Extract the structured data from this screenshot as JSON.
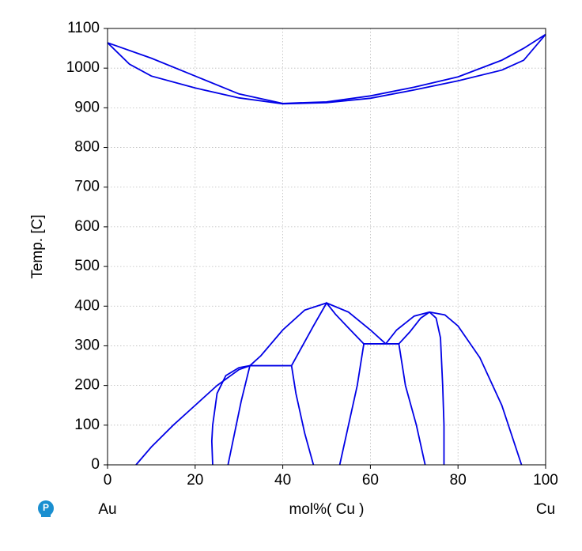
{
  "chart_data": {
    "type": "line",
    "y_label": "Temp.  [C]",
    "x_label": "mol%(  Cu  )",
    "left_label": "Au",
    "right_label": "Cu",
    "xlim": [
      0,
      100
    ],
    "ylim": [
      0,
      1100
    ],
    "xticks": [
      0,
      20,
      40,
      60,
      80,
      100
    ],
    "yticks": [
      0,
      100,
      200,
      300,
      400,
      500,
      600,
      700,
      800,
      900,
      1000,
      1100
    ],
    "grid": true,
    "series": [
      {
        "color": "#0000e6",
        "x": [
          0,
          10,
          20,
          30,
          40,
          50,
          60,
          70,
          80,
          90,
          95,
          100
        ],
        "values": [
          1064,
          1025,
          980,
          935,
          911,
          915,
          930,
          952,
          978,
          1020,
          1050,
          1085
        ]
      },
      {
        "color": "#0000e6",
        "x": [
          0,
          5,
          10,
          20,
          30,
          40,
          50,
          60,
          70,
          80,
          90,
          95,
          100
        ],
        "values": [
          1064,
          1010,
          980,
          950,
          925,
          910,
          913,
          924,
          945,
          968,
          995,
          1020,
          1085
        ]
      },
      {
        "color": "#0000e6",
        "x": [
          6.5,
          10,
          15,
          20,
          25,
          30,
          32.5,
          35,
          40,
          45,
          50,
          55,
          60,
          63.5
        ],
        "values": [
          0,
          45,
          100,
          150,
          200,
          240,
          250,
          275,
          340,
          390,
          408,
          385,
          340,
          305
        ]
      },
      {
        "color": "#0000e6",
        "x": [
          24,
          23.8,
          24,
          25,
          27,
          30,
          32.5
        ],
        "values": [
          0,
          60,
          100,
          180,
          225,
          245,
          250
        ]
      },
      {
        "color": "#0000e6",
        "x": [
          27.5,
          29,
          30.5,
          32.5,
          42
        ],
        "values": [
          0,
          80,
          160,
          250,
          250
        ]
      },
      {
        "color": "#0000e6",
        "x": [
          42,
          43,
          45,
          47
        ],
        "values": [
          250,
          180,
          80,
          0
        ]
      },
      {
        "color": "#0000e6",
        "x": [
          42,
          44,
          47,
          50,
          52,
          55,
          58.5,
          66.5
        ],
        "values": [
          250,
          290,
          350,
          408,
          380,
          345,
          305,
          305
        ]
      },
      {
        "color": "#0000e6",
        "x": [
          58.5,
          57,
          55,
          53
        ],
        "values": [
          305,
          200,
          100,
          0
        ]
      },
      {
        "color": "#0000e6",
        "x": [
          66.5,
          68,
          70.5,
          72.5
        ],
        "values": [
          305,
          200,
          100,
          0
        ]
      },
      {
        "color": "#0000e6",
        "x": [
          66.5,
          69,
          71.5,
          73.5
        ],
        "values": [
          305,
          335,
          370,
          385
        ]
      },
      {
        "color": "#0000e6",
        "x": [
          63.5,
          66,
          70,
          73.5,
          77,
          80,
          85,
          90,
          94.5
        ],
        "values": [
          305,
          340,
          375,
          385,
          378,
          350,
          270,
          150,
          0
        ]
      },
      {
        "color": "#0000e6",
        "x": [
          73.5,
          75,
          76,
          76.5,
          76.8,
          76.8
        ],
        "values": [
          385,
          370,
          320,
          200,
          100,
          0
        ]
      }
    ]
  }
}
